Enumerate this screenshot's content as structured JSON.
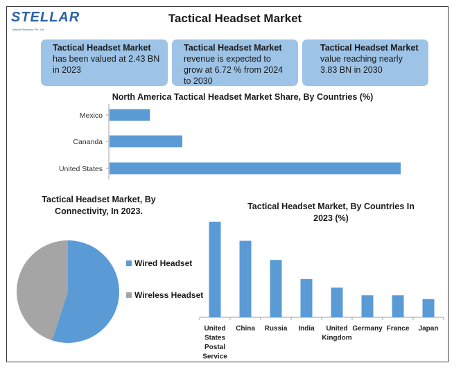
{
  "header": {
    "logo_text": "STELLAR",
    "logo_sub": "Market Research Pvt. Ltd.",
    "title": "Tactical Headset Market"
  },
  "cards": [
    {
      "bold": "Tactical Headset Market",
      "text": "has been valued at 2.43 BN in 2023"
    },
    {
      "bold": "Tactical Headset Market",
      "text": "revenue is expected to grow at 6.72 % from 2024 to 2030"
    },
    {
      "bold": "Tactical Headset Market",
      "text": "value reaching nearly 3.83 BN in 2030"
    }
  ],
  "colors": {
    "bar": "#5b9bd5",
    "pie_wired": "#5b9bd5",
    "pie_wireless": "#a5a5a5",
    "card_bg": "#9dc3e6"
  },
  "chart_data": [
    {
      "type": "bar",
      "orientation": "horizontal",
      "title": "North America Tactical Headset Market Share, By Countries (%)",
      "categories": [
        "Mexico",
        "Cananda",
        "United States"
      ],
      "values": [
        10,
        18,
        72
      ],
      "xlim": [
        0,
        72
      ],
      "grid": false
    },
    {
      "type": "pie",
      "title": "Tactical Headset Market, By Connectivity, In 2023.",
      "labels": [
        "Wired Headset",
        "Wireless Headset"
      ],
      "values": [
        55,
        45
      ],
      "legend": "right"
    },
    {
      "type": "bar",
      "orientation": "vertical",
      "title": "Tactical Headset Market, By Countries In 2023 (%)",
      "categories": [
        "United States Postal Service",
        "China",
        "Russia",
        "India",
        "United Kingdom",
        "Germany",
        "France",
        "Japan"
      ],
      "values": [
        100,
        80,
        60,
        40,
        31,
        23,
        23,
        19
      ],
      "ylim": [
        0,
        100
      ],
      "grid": false
    }
  ]
}
